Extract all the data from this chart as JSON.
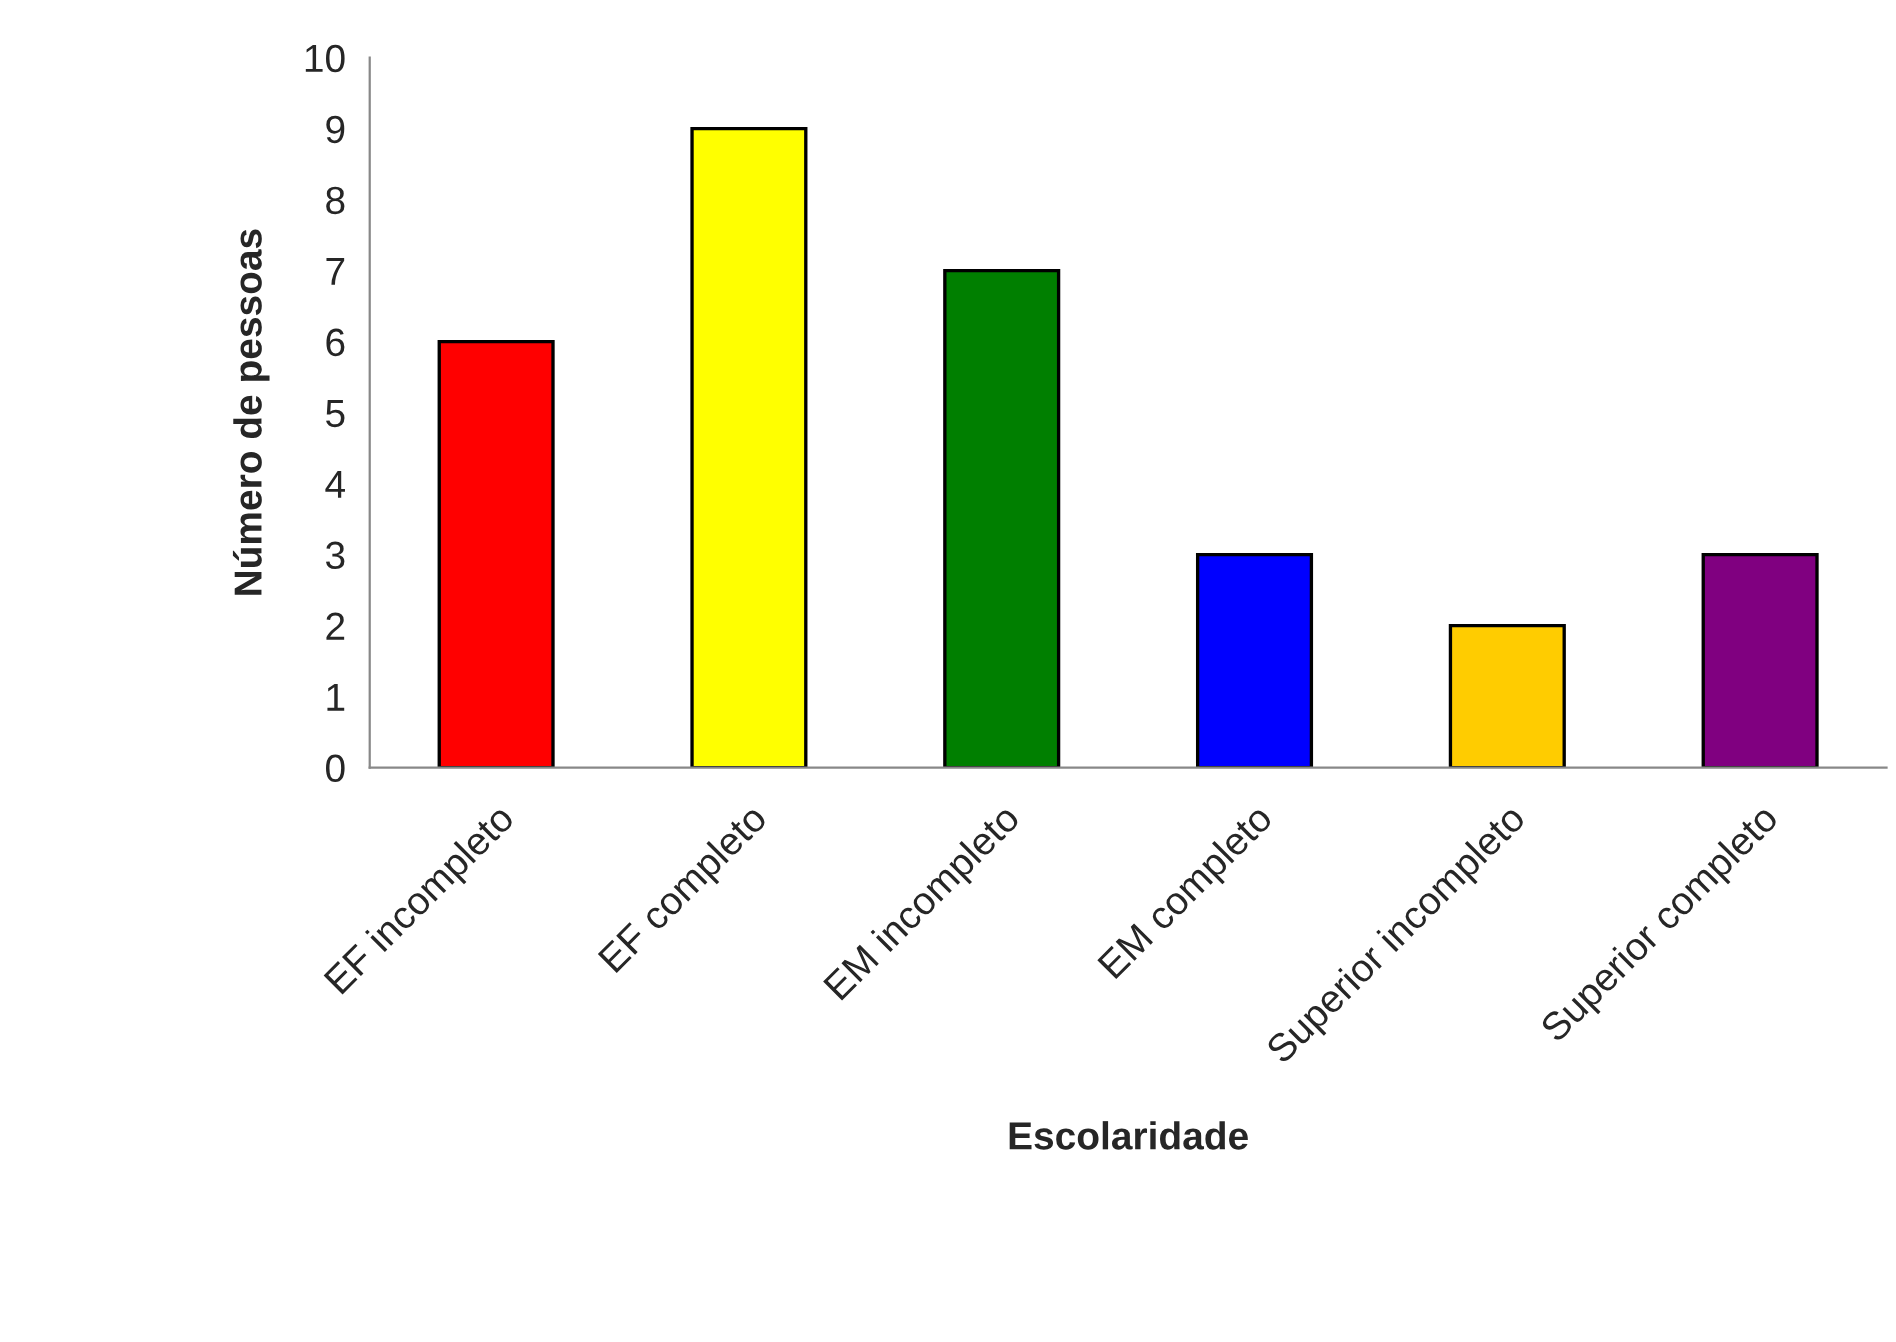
{
  "chart_data": {
    "type": "bar",
    "xlabel": "Escolaridade",
    "ylabel": "Número de pessoas",
    "categories": [
      "EF incompleto",
      "EF completo",
      "EM incompleto",
      "EM completo",
      "Superior incompleto",
      "Superior completo"
    ],
    "values": [
      6,
      9,
      7,
      3,
      2,
      3
    ],
    "colors": [
      "#ff0000",
      "#ffff00",
      "#007f00",
      "#0000ff",
      "#ffcc00",
      "#800080"
    ],
    "ylim": [
      0,
      10
    ],
    "yticks": [
      0,
      1,
      2,
      3,
      4,
      5,
      6,
      7,
      8,
      9,
      10
    ],
    "grid": false,
    "legend": false
  }
}
